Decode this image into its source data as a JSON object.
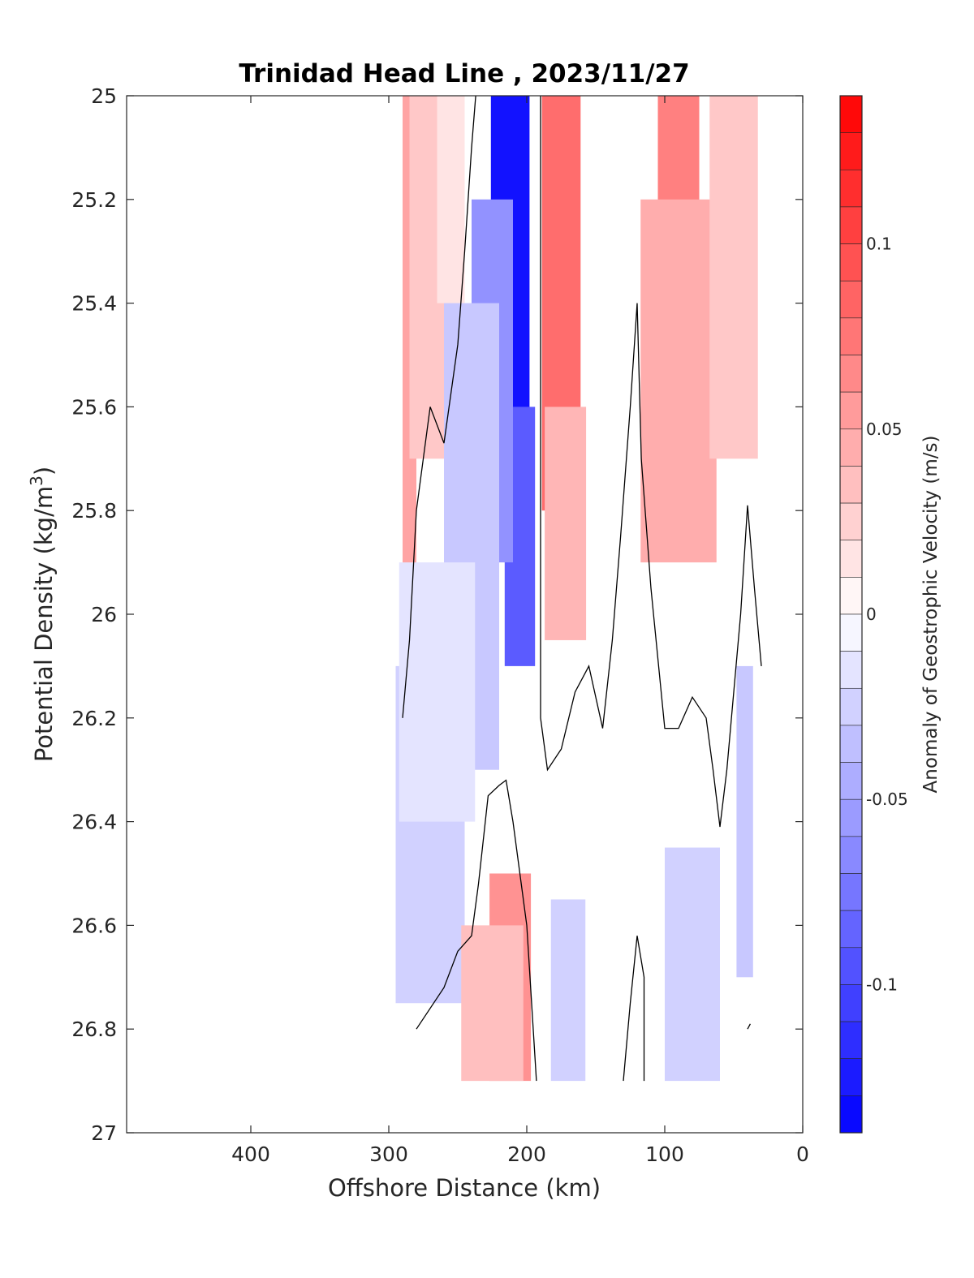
{
  "chart_data": {
    "type": "heatmap",
    "title": "Trinidad Head Line , 2023/11/27",
    "xlabel": "Offshore Distance (km)",
    "ylabel": {
      "main": "Potential Density (kg/m",
      "sup": "3",
      "close": ")"
    },
    "xlim": [
      490,
      0
    ],
    "ylim": [
      25,
      27
    ],
    "y_reversed": true,
    "x_ticks": [
      400,
      300,
      200,
      100,
      0
    ],
    "x_tick_labels": [
      "400",
      "300",
      "200",
      "100",
      "0"
    ],
    "y_ticks": [
      25,
      25.2,
      25.4,
      25.6,
      25.8,
      26,
      26.2,
      26.4,
      26.6,
      26.8,
      27
    ],
    "y_tick_labels": [
      "25",
      "25.2",
      "25.4",
      "25.6",
      "25.8",
      "26",
      "26.2",
      "26.4",
      "26.6",
      "26.8",
      "27"
    ],
    "colorbar": {
      "label": "Anomaly of Geostrophic Velocity (m/s)",
      "range": [
        -0.14,
        0.14
      ],
      "step": 0.01,
      "ticks": [
        0.1,
        0.05,
        0,
        -0.05,
        -0.1
      ],
      "tick_labels": [
        "0.1",
        "0.05",
        "0",
        "-0.05",
        "-0.1"
      ],
      "colormap": "blue-white-red",
      "color_negative": "#0000ff",
      "color_zero": "#ffffff",
      "color_positive": "#ff0000"
    },
    "data_extent": {
      "x": [
        30,
        290
      ],
      "y": [
        25,
        26.9
      ]
    },
    "velocity_fields": [
      {
        "x": 285,
        "y_top": 25.0,
        "y_bottom": 26.1,
        "value": 0.05,
        "width_km": 10
      },
      {
        "x": 270,
        "y_top": 25.0,
        "y_bottom": 25.7,
        "value": 0.03,
        "width_km": 30
      },
      {
        "x": 255,
        "y_top": 25.0,
        "y_bottom": 25.4,
        "value": 0.015,
        "width_km": 20
      },
      {
        "x": 212,
        "y_top": 25.0,
        "y_bottom": 25.7,
        "value": -0.13,
        "width_km": 28
      },
      {
        "x": 205,
        "y_top": 25.6,
        "y_bottom": 26.1,
        "value": -0.09,
        "width_km": 22
      },
      {
        "x": 225,
        "y_top": 25.2,
        "y_bottom": 25.9,
        "value": -0.06,
        "width_km": 30
      },
      {
        "x": 240,
        "y_top": 25.4,
        "y_bottom": 26.3,
        "value": -0.03,
        "width_km": 40
      },
      {
        "x": 175,
        "y_top": 25.0,
        "y_bottom": 25.8,
        "value": 0.08,
        "width_km": 28
      },
      {
        "x": 172,
        "y_top": 25.6,
        "y_bottom": 26.05,
        "value": 0.04,
        "width_km": 30
      },
      {
        "x": 90,
        "y_top": 25.0,
        "y_bottom": 25.3,
        "value": 0.07,
        "width_km": 30
      },
      {
        "x": 90,
        "y_top": 25.2,
        "y_bottom": 25.9,
        "value": 0.045,
        "width_km": 55
      },
      {
        "x": 50,
        "y_top": 25.0,
        "y_bottom": 25.7,
        "value": 0.03,
        "width_km": 35
      },
      {
        "x": 270,
        "y_top": 26.1,
        "y_bottom": 26.75,
        "value": -0.025,
        "width_km": 50
      },
      {
        "x": 265,
        "y_top": 25.9,
        "y_bottom": 26.4,
        "value": -0.015,
        "width_km": 55
      },
      {
        "x": 212,
        "y_top": 26.5,
        "y_bottom": 26.9,
        "value": 0.06,
        "width_km": 30
      },
      {
        "x": 225,
        "y_top": 26.6,
        "y_bottom": 26.9,
        "value": 0.035,
        "width_km": 45
      },
      {
        "x": 170,
        "y_top": 26.55,
        "y_bottom": 26.9,
        "value": -0.025,
        "width_km": 25
      },
      {
        "x": 80,
        "y_top": 26.45,
        "y_bottom": 26.9,
        "value": -0.025,
        "width_km": 40
      },
      {
        "x": 42,
        "y_top": 26.1,
        "y_bottom": 26.7,
        "value": -0.03,
        "width_km": 12
      }
    ],
    "zero_contours": [
      {
        "points": [
          [
            290,
            26.2
          ],
          [
            285,
            26.05
          ],
          [
            280,
            25.8
          ],
          [
            270,
            25.6
          ],
          [
            260,
            25.67
          ],
          [
            250,
            25.48
          ],
          [
            245,
            25.3
          ],
          [
            240,
            25.1
          ],
          [
            237,
            25.0
          ]
        ]
      },
      {
        "points": [
          [
            190,
            25.0
          ],
          [
            190,
            26.2
          ],
          [
            185,
            26.3
          ],
          [
            175,
            26.26
          ],
          [
            165,
            26.15
          ],
          [
            155,
            26.1
          ],
          [
            145,
            26.22
          ],
          [
            138,
            26.05
          ],
          [
            132,
            25.85
          ],
          [
            125,
            25.6
          ],
          [
            120,
            25.4
          ],
          [
            117,
            25.7
          ],
          [
            110,
            25.95
          ],
          [
            100,
            26.22
          ],
          [
            90,
            26.22
          ],
          [
            80,
            26.16
          ],
          [
            70,
            26.2
          ],
          [
            65,
            26.3
          ],
          [
            60,
            26.41
          ],
          [
            55,
            26.3
          ],
          [
            50,
            26.15
          ],
          [
            45,
            26.0
          ],
          [
            40,
            25.79
          ],
          [
            35,
            25.95
          ],
          [
            30,
            26.1
          ]
        ]
      },
      {
        "points": [
          [
            280,
            26.8
          ],
          [
            260,
            26.72
          ],
          [
            250,
            26.65
          ],
          [
            240,
            26.62
          ],
          [
            235,
            26.52
          ],
          [
            228,
            26.35
          ],
          [
            220,
            26.33
          ],
          [
            215,
            26.32
          ],
          [
            210,
            26.4
          ],
          [
            205,
            26.5
          ],
          [
            200,
            26.6
          ],
          [
            193,
            26.9
          ]
        ]
      },
      {
        "points": [
          [
            130,
            26.9
          ],
          [
            125,
            26.75
          ],
          [
            120,
            26.62
          ],
          [
            115,
            26.7
          ],
          [
            115,
            26.9
          ]
        ]
      },
      {
        "points": [
          [
            40,
            26.8
          ],
          [
            38,
            26.79
          ]
        ]
      }
    ]
  }
}
